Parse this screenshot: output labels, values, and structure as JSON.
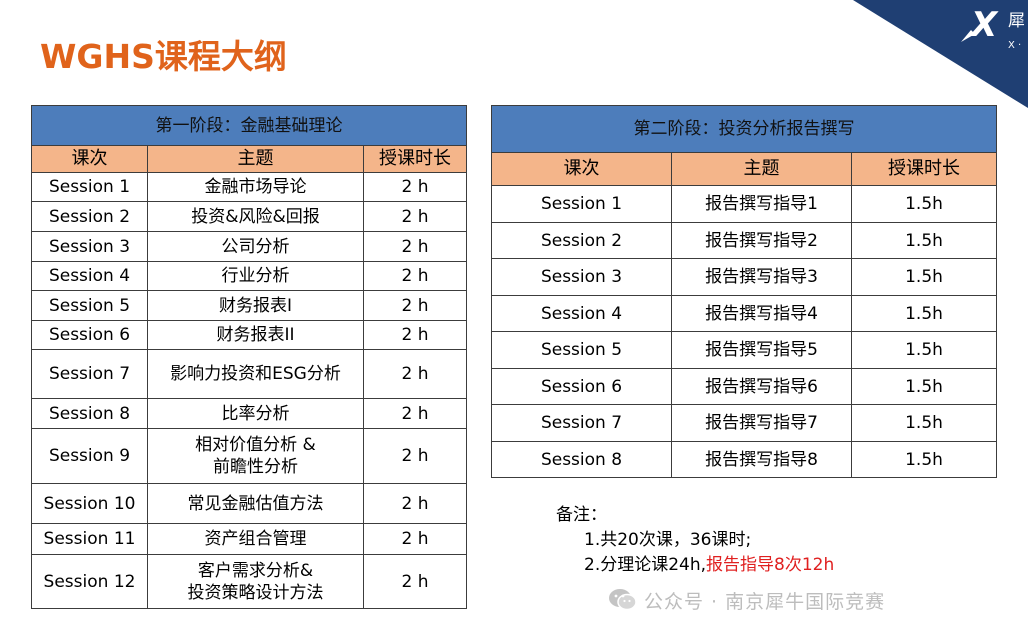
{
  "title": "WGHS课程大纲",
  "logo": {
    "letters": "X",
    "side_text": "犀",
    "side_text2": "X ·"
  },
  "stage1": {
    "title": "第一阶段：金融基础理论",
    "headers": [
      "课次",
      "主题",
      "授课时长"
    ],
    "rows": [
      {
        "session": "Session 1",
        "topic": "金融市场导论",
        "hours": "2 h"
      },
      {
        "session": "Session 2",
        "topic": "投资&风险&回报",
        "hours": "2 h"
      },
      {
        "session": "Session 3",
        "topic": "公司分析",
        "hours": "2 h"
      },
      {
        "session": "Session 4",
        "topic": "行业分析",
        "hours": "2 h"
      },
      {
        "session": "Session 5",
        "topic": "财务报表I",
        "hours": "2 h"
      },
      {
        "session": "Session 6",
        "topic": "财务报表II",
        "hours": "2 h"
      },
      {
        "session": "Session 7",
        "topic": "影响力投资和ESG分析",
        "hours": "2 h"
      },
      {
        "session": "Session 8",
        "topic": "比率分析",
        "hours": "2 h"
      },
      {
        "session": "Session 9",
        "topic": "相对价值分析 &",
        "topic2": "前瞻性分析",
        "hours": "2 h"
      },
      {
        "session": "Session 10",
        "topic": "常见金融估值方法",
        "hours": "2 h"
      },
      {
        "session": "Session 11",
        "topic": "资产组合管理",
        "hours": "2 h"
      },
      {
        "session": "Session 12",
        "topic": "客户需求分析&",
        "topic2": "投资策略设计方法",
        "hours": "2 h"
      }
    ]
  },
  "stage2": {
    "title": "第二阶段：投资分析报告撰写",
    "headers": [
      "课次",
      "主题",
      "授课时长"
    ],
    "rows": [
      {
        "session": "Session 1",
        "topic": "报告撰写指导1",
        "hours": "1.5h"
      },
      {
        "session": "Session 2",
        "topic": "报告撰写指导2",
        "hours": "1.5h"
      },
      {
        "session": "Session 3",
        "topic": "报告撰写指导3",
        "hours": "1.5h"
      },
      {
        "session": "Session 4",
        "topic": "报告撰写指导4",
        "hours": "1.5h"
      },
      {
        "session": "Session 5",
        "topic": "报告撰写指导5",
        "hours": "1.5h"
      },
      {
        "session": "Session 6",
        "topic": "报告撰写指导6",
        "hours": "1.5h"
      },
      {
        "session": "Session 7",
        "topic": "报告撰写指导7",
        "hours": "1.5h"
      },
      {
        "session": "Session 8",
        "topic": "报告撰写指导8",
        "hours": "1.5h"
      }
    ]
  },
  "notes": {
    "label": "备注：",
    "line1": "1.共20次课，36课时;",
    "line2_prefix": "2.分理论课24h,",
    "line2_highlight": "报告指导8次12h"
  },
  "watermark": {
    "icon": "wechat-icon",
    "text": "公众号 · 南京犀牛国际竞赛"
  },
  "colors": {
    "title": "#e0631b",
    "phase_header": "#4d7dbb",
    "column_header": "#f4b58a",
    "highlight": "#e02020",
    "corner": "#1f3f73"
  }
}
